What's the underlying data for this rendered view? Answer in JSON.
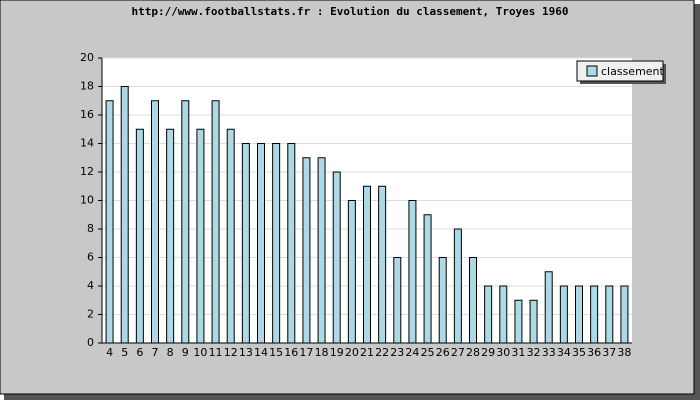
{
  "chart_data": {
    "type": "bar",
    "title": "http://www.footballstats.fr : Evolution du classement, Troyes 1960",
    "categories": [
      4,
      5,
      6,
      7,
      8,
      9,
      10,
      11,
      12,
      13,
      14,
      15,
      16,
      17,
      18,
      19,
      20,
      21,
      22,
      23,
      24,
      25,
      26,
      27,
      28,
      29,
      30,
      31,
      32,
      33,
      34,
      35,
      36,
      37,
      38
    ],
    "series": [
      {
        "name": "classement",
        "color": "#add8e6",
        "values": [
          17,
          18,
          15,
          17,
          15,
          17,
          15,
          17,
          15,
          14,
          14,
          14,
          14,
          13,
          13,
          12,
          10,
          11,
          11,
          6,
          10,
          9,
          6,
          8,
          6,
          4,
          4,
          3,
          3,
          5,
          4,
          4,
          4,
          4,
          4
        ]
      }
    ],
    "ylim": [
      0,
      20
    ],
    "yticks": [
      0,
      2,
      4,
      6,
      8,
      10,
      12,
      14,
      16,
      18,
      20
    ],
    "grid": true,
    "legend": "top-right"
  }
}
